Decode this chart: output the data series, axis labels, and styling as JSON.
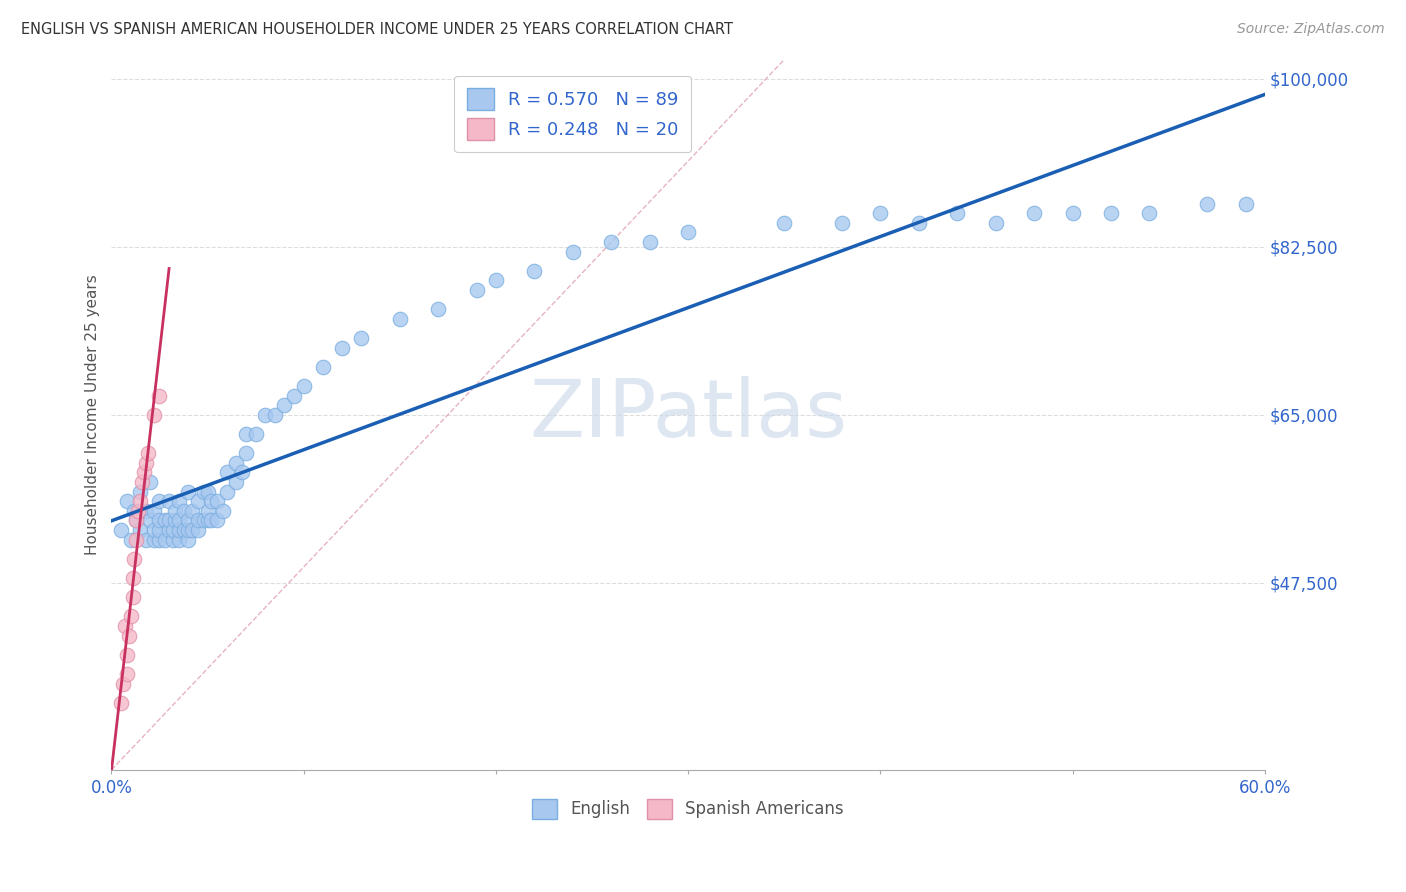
{
  "title": "ENGLISH VS SPANISH AMERICAN HOUSEHOLDER INCOME UNDER 25 YEARS CORRELATION CHART",
  "source": "Source: ZipAtlas.com",
  "xlabel_english": "English",
  "xlabel_spanish": "Spanish Americans",
  "ylabel": "Householder Income Under 25 years",
  "x_min": 0.0,
  "x_max": 0.6,
  "y_min": 28000,
  "y_max": 102000,
  "y_ticks": [
    47500,
    65000,
    82500,
    100000
  ],
  "y_tick_labels": [
    "$47,500",
    "$65,000",
    "$82,500",
    "$100,000"
  ],
  "x_ticks": [
    0.0,
    0.1,
    0.2,
    0.3,
    0.4,
    0.5,
    0.6
  ],
  "x_tick_labels": [
    "0.0%",
    "",
    "",
    "",
    "",
    "",
    "60.0%"
  ],
  "english_R": "0.570",
  "english_N": "89",
  "spanish_R": "0.248",
  "spanish_N": "20",
  "english_color": "#A8C8F0",
  "english_edge_color": "#7AAEE0",
  "spanish_color": "#F4B8C8",
  "spanish_edge_color": "#E090A8",
  "trend_english_color": "#1A5FB4",
  "trend_spanish_color": "#C83060",
  "diag_color": "#E0A0B0",
  "background_color": "#FFFFFF",
  "grid_color": "#DDDDDD",
  "watermark_color": "#C8D8E8",
  "english_x": [
    0.005,
    0.008,
    0.01,
    0.012,
    0.013,
    0.015,
    0.015,
    0.018,
    0.018,
    0.02,
    0.02,
    0.022,
    0.022,
    0.022,
    0.025,
    0.025,
    0.025,
    0.025,
    0.028,
    0.028,
    0.03,
    0.03,
    0.03,
    0.032,
    0.032,
    0.033,
    0.033,
    0.035,
    0.035,
    0.035,
    0.035,
    0.038,
    0.038,
    0.04,
    0.04,
    0.04,
    0.04,
    0.042,
    0.042,
    0.045,
    0.045,
    0.045,
    0.048,
    0.048,
    0.05,
    0.05,
    0.05,
    0.052,
    0.052,
    0.055,
    0.055,
    0.058,
    0.06,
    0.06,
    0.065,
    0.065,
    0.068,
    0.07,
    0.07,
    0.075,
    0.08,
    0.085,
    0.09,
    0.095,
    0.1,
    0.11,
    0.12,
    0.13,
    0.15,
    0.17,
    0.19,
    0.2,
    0.22,
    0.24,
    0.26,
    0.28,
    0.3,
    0.35,
    0.38,
    0.4,
    0.42,
    0.44,
    0.46,
    0.48,
    0.5,
    0.52,
    0.54,
    0.57,
    0.59
  ],
  "english_y": [
    53000,
    56000,
    52000,
    55000,
    54000,
    53000,
    57000,
    52000,
    55000,
    58000,
    54000,
    52000,
    53000,
    55000,
    52000,
    53000,
    54000,
    56000,
    52000,
    54000,
    53000,
    54000,
    56000,
    52000,
    53000,
    54000,
    55000,
    52000,
    53000,
    54000,
    56000,
    53000,
    55000,
    52000,
    53000,
    54000,
    57000,
    53000,
    55000,
    53000,
    54000,
    56000,
    54000,
    57000,
    54000,
    55000,
    57000,
    54000,
    56000,
    54000,
    56000,
    55000,
    57000,
    59000,
    58000,
    60000,
    59000,
    61000,
    63000,
    63000,
    65000,
    65000,
    66000,
    67000,
    68000,
    70000,
    72000,
    73000,
    75000,
    76000,
    78000,
    79000,
    80000,
    82000,
    83000,
    83000,
    84000,
    85000,
    85000,
    86000,
    85000,
    86000,
    85000,
    86000,
    86000,
    86000,
    86000,
    87000,
    87000
  ],
  "spanish_x": [
    0.005,
    0.006,
    0.007,
    0.008,
    0.008,
    0.009,
    0.01,
    0.011,
    0.011,
    0.012,
    0.013,
    0.013,
    0.014,
    0.015,
    0.016,
    0.017,
    0.018,
    0.019,
    0.022,
    0.025
  ],
  "spanish_y": [
    35000,
    37000,
    43000,
    38000,
    40000,
    42000,
    44000,
    46000,
    48000,
    50000,
    52000,
    54000,
    55000,
    56000,
    58000,
    59000,
    60000,
    61000,
    65000,
    67000
  ]
}
